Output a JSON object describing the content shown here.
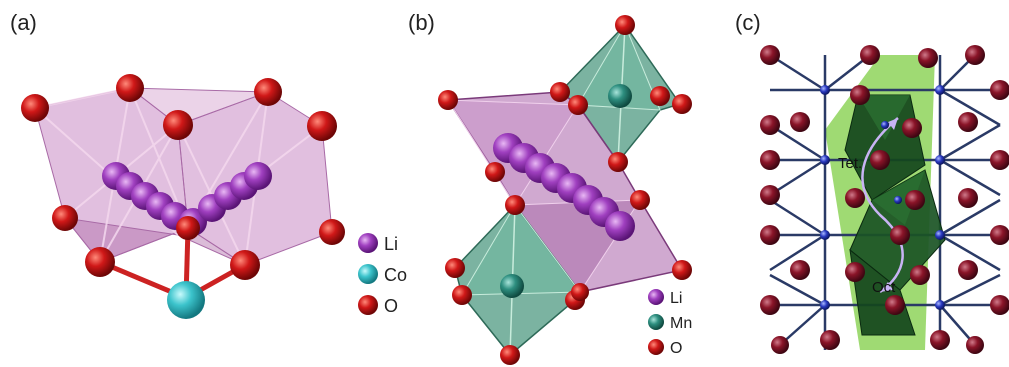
{
  "panels": [
    {
      "label": "(a)"
    },
    {
      "label": "(b)"
    },
    {
      "label": "(c)"
    }
  ],
  "legend_a": [
    {
      "label": "Li",
      "color": "#a040c0"
    },
    {
      "label": "Co",
      "color": "#3cc4cc"
    },
    {
      "label": "O",
      "color": "#cc1a1a"
    }
  ],
  "legend_b": [
    {
      "label": "Li",
      "color": "#a040c0"
    },
    {
      "label": "Mn",
      "color": "#2e8f80"
    },
    {
      "label": "O",
      "color": "#e01e1e"
    }
  ],
  "panel_c": {
    "tet_label": "Tet.",
    "oct_label": "Oct"
  }
}
